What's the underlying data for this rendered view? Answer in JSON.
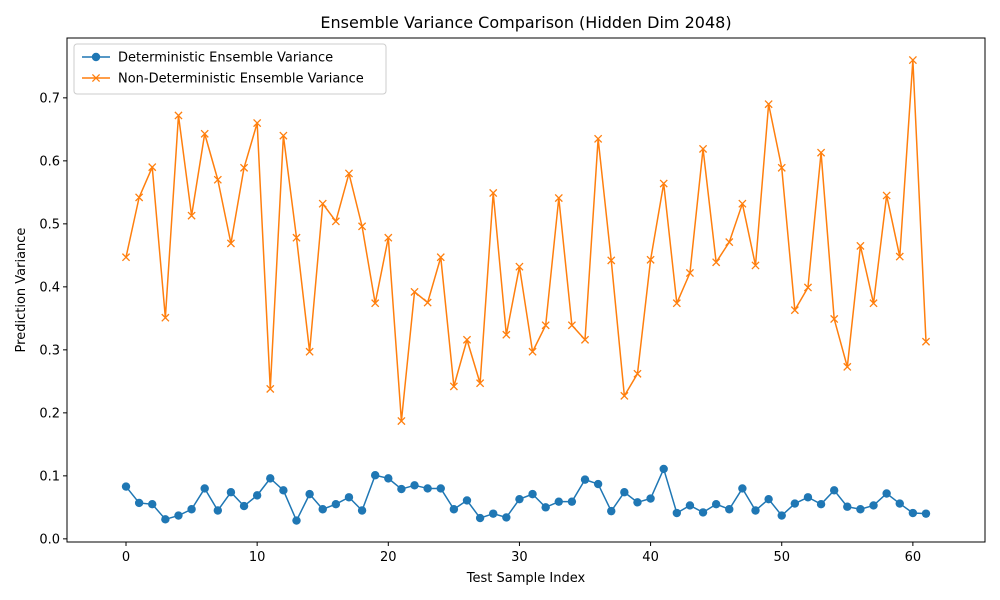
{
  "chart_data": {
    "type": "line",
    "title": "Ensemble Variance Comparison (Hidden Dim 2048)",
    "xlabel": "Test Sample Index",
    "ylabel": "Prediction Variance",
    "xlim": [
      -4.5,
      65.5
    ],
    "ylim": [
      -0.005,
      0.795
    ],
    "xticks": [
      0,
      10,
      20,
      30,
      40,
      50,
      60
    ],
    "yticks": [
      0.0,
      0.1,
      0.2,
      0.3,
      0.4,
      0.5,
      0.6,
      0.7
    ],
    "grid": false,
    "legend_position": "upper-left",
    "series": [
      {
        "name": "Deterministic Ensemble Variance",
        "color": "#1f77b4",
        "marker": "circle",
        "values": [
          0.083,
          0.057,
          0.055,
          0.031,
          0.037,
          0.047,
          0.08,
          0.045,
          0.074,
          0.052,
          0.069,
          0.096,
          0.077,
          0.029,
          0.071,
          0.047,
          0.055,
          0.066,
          0.045,
          0.101,
          0.096,
          0.079,
          0.085,
          0.08,
          0.08,
          0.047,
          0.061,
          0.033,
          0.04,
          0.034,
          0.063,
          0.071,
          0.05,
          0.059,
          0.059,
          0.094,
          0.087,
          0.044,
          0.074,
          0.058,
          0.064,
          0.111,
          0.041,
          0.053,
          0.042,
          0.055,
          0.047,
          0.08,
          0.045,
          0.063,
          0.037,
          0.056,
          0.066,
          0.055,
          0.077,
          0.051,
          0.047,
          0.053,
          0.072,
          0.056,
          0.041,
          0.04
        ]
      },
      {
        "name": "Non-Deterministic Ensemble Variance",
        "color": "#ff7f0e",
        "marker": "x",
        "values": [
          0.447,
          0.542,
          0.59,
          0.351,
          0.672,
          0.513,
          0.643,
          0.57,
          0.469,
          0.589,
          0.66,
          0.238,
          0.64,
          0.478,
          0.297,
          0.532,
          0.504,
          0.58,
          0.496,
          0.374,
          0.478,
          0.187,
          0.392,
          0.375,
          0.447,
          0.242,
          0.316,
          0.247,
          0.549,
          0.324,
          0.432,
          0.297,
          0.339,
          0.541,
          0.339,
          0.316,
          0.635,
          0.442,
          0.227,
          0.262,
          0.443,
          0.564,
          0.374,
          0.422,
          0.619,
          0.439,
          0.471,
          0.532,
          0.434,
          0.69,
          0.589,
          0.363,
          0.399,
          0.613,
          0.349,
          0.273,
          0.465,
          0.374,
          0.545,
          0.448,
          0.76,
          0.313
        ]
      }
    ]
  }
}
